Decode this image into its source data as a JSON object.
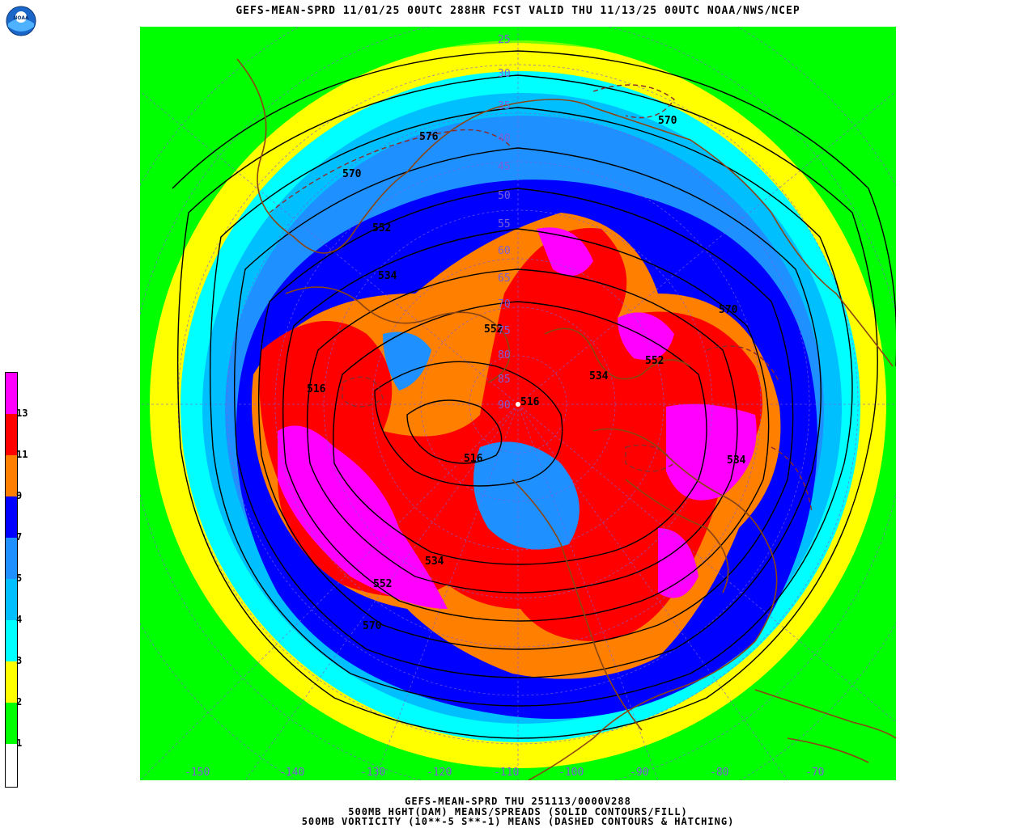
{
  "header": {
    "title": "GEFS-MEAN-SPRD 11/01/25 00UTC 288HR FCST VALID THU 11/13/25 00UTC NOAA/NWS/NCEP",
    "logo_text": "NOAA"
  },
  "footer": {
    "line1": "GEFS-MEAN-SPRD THU 251113/0000V288",
    "line2": "500MB HGHT(DAM) MEANS/SPREADS (SOLID CONTOURS/FILL)",
    "line3": "500MB VORTICITY (10**-5 S**-1) MEANS (DASHED CONTOURS & HATCHING)"
  },
  "legend": {
    "labels": [
      "13",
      "11",
      "9",
      "7",
      "5",
      "4",
      "3",
      "2",
      "1"
    ],
    "colors": [
      "#ff00ff",
      "#ff0000",
      "#ff7f00",
      "#0000ff",
      "#1e90ff",
      "#00bfff",
      "#00ffff",
      "#ffff00",
      "#00ff00",
      "#ffffff"
    ]
  },
  "longitude_labels": [
    "-150",
    "-140",
    "-130",
    "-120",
    "-110",
    "-100",
    "-90",
    "-80",
    "-70"
  ],
  "latitude_labels": [
    "25",
    "30",
    "35",
    "40",
    "45",
    "50",
    "55",
    "60",
    "65",
    "70",
    "75",
    "80",
    "85",
    "90"
  ],
  "contour_labels": [
    "576",
    "570",
    "552",
    "534",
    "516",
    "570",
    "552",
    "534",
    "516",
    "552",
    "570",
    "534",
    "552",
    "570",
    "534",
    "516"
  ],
  "colors": {
    "lat_lon_grid": "#7b5fd6",
    "coastlines": "#8b4513",
    "contours": "#000000"
  }
}
